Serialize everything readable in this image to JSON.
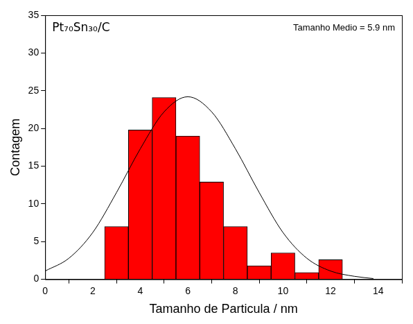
{
  "chart_data": {
    "type": "histogram",
    "annotations": [
      "Pt₇₀Sn₃₀/C",
      "Tamanho Medio = 5.9 nm"
    ],
    "x_label": "Tamanho de Particula / nm",
    "y_label": "Contagem",
    "bins": [
      2.5,
      3.5,
      4.5,
      5.5,
      6.5,
      7.5,
      8.5,
      9.5,
      10.5,
      11.5,
      12.5
    ],
    "values": [
      7,
      19.8,
      24.1,
      19,
      12.9,
      7,
      1.8,
      3.5,
      0.9,
      2.6
    ],
    "color": "#ff0000",
    "fit": {
      "x": [
        0,
        1,
        2,
        3,
        4,
        5,
        6,
        7,
        8,
        9,
        10,
        11,
        12,
        13,
        13.8
      ],
      "y": [
        1.1,
        2.8,
        6.2,
        11.5,
        17.3,
        22.2,
        24.2,
        22.2,
        17.3,
        11.5,
        6.2,
        2.8,
        1.1,
        0.4,
        0.1
      ],
      "color": "#000000"
    },
    "xlim": [
      0,
      15
    ],
    "xticks": [
      0,
      2,
      4,
      6,
      8,
      10,
      12,
      14
    ],
    "ylim": [
      0,
      35
    ],
    "yticks": [
      0,
      5,
      10,
      15,
      20,
      25,
      30,
      35
    ],
    "grid": false
  }
}
